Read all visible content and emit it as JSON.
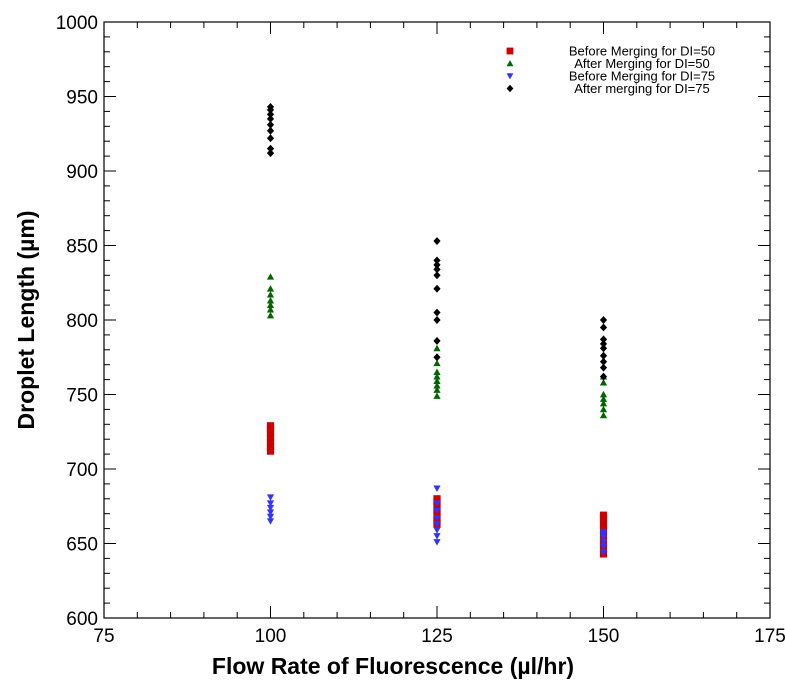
{
  "chart_data": {
    "type": "scatter",
    "title": "",
    "xlabel": "Flow Rate of Fluorescence (µl/hr)",
    "ylabel": "Droplet Length (µm)",
    "xlim": [
      75,
      175
    ],
    "ylim": [
      600,
      1000
    ],
    "x_ticks": [
      75,
      100,
      125,
      150,
      175
    ],
    "y_ticks": [
      600,
      650,
      700,
      750,
      800,
      850,
      900,
      950,
      1000
    ],
    "grid": false,
    "legend_position": "top-right",
    "series": [
      {
        "name": "Before Merging for DI=50",
        "marker": "square",
        "color": "#cc0000",
        "points": [
          {
            "x": 100,
            "y": 712
          },
          {
            "x": 100,
            "y": 715
          },
          {
            "x": 100,
            "y": 718
          },
          {
            "x": 100,
            "y": 721
          },
          {
            "x": 100,
            "y": 724
          },
          {
            "x": 100,
            "y": 727
          },
          {
            "x": 100,
            "y": 729
          },
          {
            "x": 125,
            "y": 663
          },
          {
            "x": 125,
            "y": 666
          },
          {
            "x": 125,
            "y": 669
          },
          {
            "x": 125,
            "y": 672
          },
          {
            "x": 125,
            "y": 675
          },
          {
            "x": 125,
            "y": 678
          },
          {
            "x": 125,
            "y": 680
          },
          {
            "x": 150,
            "y": 643
          },
          {
            "x": 150,
            "y": 647
          },
          {
            "x": 150,
            "y": 651
          },
          {
            "x": 150,
            "y": 655
          },
          {
            "x": 150,
            "y": 659
          },
          {
            "x": 150,
            "y": 663
          },
          {
            "x": 150,
            "y": 667
          },
          {
            "x": 150,
            "y": 669
          }
        ]
      },
      {
        "name": "After Merging for DI=50",
        "marker": "triangle-up",
        "color": "#006600",
        "points": [
          {
            "x": 100,
            "y": 803
          },
          {
            "x": 100,
            "y": 807
          },
          {
            "x": 100,
            "y": 810
          },
          {
            "x": 100,
            "y": 813
          },
          {
            "x": 100,
            "y": 817
          },
          {
            "x": 100,
            "y": 821
          },
          {
            "x": 100,
            "y": 829
          },
          {
            "x": 125,
            "y": 749
          },
          {
            "x": 125,
            "y": 753
          },
          {
            "x": 125,
            "y": 756
          },
          {
            "x": 125,
            "y": 759
          },
          {
            "x": 125,
            "y": 762
          },
          {
            "x": 125,
            "y": 765
          },
          {
            "x": 125,
            "y": 771
          },
          {
            "x": 125,
            "y": 781
          },
          {
            "x": 150,
            "y": 736
          },
          {
            "x": 150,
            "y": 740
          },
          {
            "x": 150,
            "y": 744
          },
          {
            "x": 150,
            "y": 747
          },
          {
            "x": 150,
            "y": 750
          },
          {
            "x": 150,
            "y": 758
          },
          {
            "x": 150,
            "y": 762
          }
        ]
      },
      {
        "name": "Before Merging for DI=75",
        "marker": "triangle-down",
        "color": "#3333ff",
        "points": [
          {
            "x": 100,
            "y": 665
          },
          {
            "x": 100,
            "y": 668
          },
          {
            "x": 100,
            "y": 671
          },
          {
            "x": 100,
            "y": 674
          },
          {
            "x": 100,
            "y": 677
          },
          {
            "x": 100,
            "y": 681
          },
          {
            "x": 125,
            "y": 651
          },
          {
            "x": 125,
            "y": 655
          },
          {
            "x": 125,
            "y": 659
          },
          {
            "x": 125,
            "y": 663
          },
          {
            "x": 125,
            "y": 667
          },
          {
            "x": 125,
            "y": 672
          },
          {
            "x": 125,
            "y": 677
          },
          {
            "x": 125,
            "y": 687
          },
          {
            "x": 150,
            "y": 644
          },
          {
            "x": 150,
            "y": 648
          },
          {
            "x": 150,
            "y": 651
          },
          {
            "x": 150,
            "y": 654
          },
          {
            "x": 150,
            "y": 656
          },
          {
            "x": 150,
            "y": 658
          }
        ]
      },
      {
        "name": "After merging for DI=75",
        "marker": "diamond",
        "color": "#000000",
        "points": [
          {
            "x": 100,
            "y": 912
          },
          {
            "x": 100,
            "y": 915
          },
          {
            "x": 100,
            "y": 922
          },
          {
            "x": 100,
            "y": 927
          },
          {
            "x": 100,
            "y": 931
          },
          {
            "x": 100,
            "y": 935
          },
          {
            "x": 100,
            "y": 938
          },
          {
            "x": 100,
            "y": 941
          },
          {
            "x": 100,
            "y": 943
          },
          {
            "x": 125,
            "y": 775
          },
          {
            "x": 125,
            "y": 786
          },
          {
            "x": 125,
            "y": 800
          },
          {
            "x": 125,
            "y": 805
          },
          {
            "x": 125,
            "y": 821
          },
          {
            "x": 125,
            "y": 830
          },
          {
            "x": 125,
            "y": 834
          },
          {
            "x": 125,
            "y": 837
          },
          {
            "x": 125,
            "y": 840
          },
          {
            "x": 125,
            "y": 853
          },
          {
            "x": 150,
            "y": 762
          },
          {
            "x": 150,
            "y": 768
          },
          {
            "x": 150,
            "y": 772
          },
          {
            "x": 150,
            "y": 776
          },
          {
            "x": 150,
            "y": 781
          },
          {
            "x": 150,
            "y": 784
          },
          {
            "x": 150,
            "y": 787
          },
          {
            "x": 150,
            "y": 795
          },
          {
            "x": 150,
            "y": 800
          }
        ]
      }
    ]
  }
}
